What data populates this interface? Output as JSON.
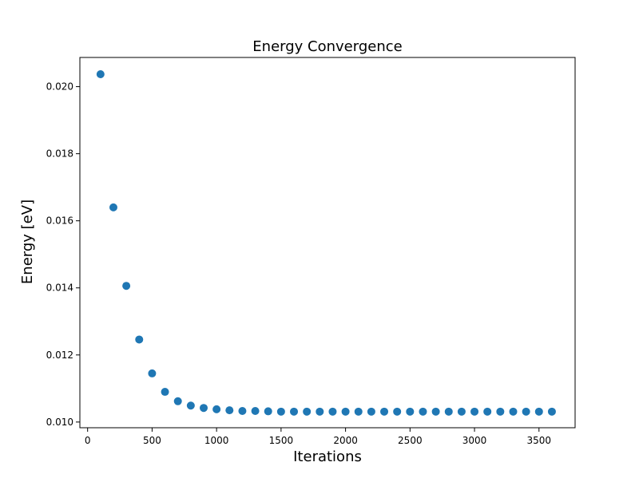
{
  "chart_data": {
    "type": "scatter",
    "title": "Energy Convergence",
    "xlabel": "Iterations",
    "ylabel": "Energy [eV]",
    "xlim": [
      -60,
      3780
    ],
    "ylim": [
      0.00983,
      0.02087
    ],
    "xticks": [
      0,
      500,
      1000,
      1500,
      2000,
      2500,
      3000,
      3500
    ],
    "xtick_labels": [
      "0",
      "500",
      "1000",
      "1500",
      "2000",
      "2500",
      "3000",
      "3500"
    ],
    "yticks": [
      0.01,
      0.012,
      0.014,
      0.016,
      0.018,
      0.02
    ],
    "ytick_labels": [
      "0.010",
      "0.012",
      "0.014",
      "0.016",
      "0.018",
      "0.020"
    ],
    "grid": false,
    "legend": false,
    "marker_color": "#1f77b4",
    "series": [
      {
        "x": [
          100,
          200,
          300,
          400,
          500,
          600,
          700,
          800,
          900,
          1000,
          1100,
          1200,
          1300,
          1400,
          1500,
          1600,
          1700,
          1800,
          1900,
          2000,
          2100,
          2200,
          2300,
          2400,
          2500,
          2600,
          2700,
          2800,
          2900,
          3000,
          3100,
          3200,
          3300,
          3400,
          3500,
          3600
        ],
        "y": [
          0.02037,
          0.0164,
          0.01406,
          0.01246,
          0.01145,
          0.0109,
          0.01062,
          0.01049,
          0.01042,
          0.01038,
          0.01035,
          0.01033,
          0.01033,
          0.01032,
          0.01031,
          0.01031,
          0.01031,
          0.01031,
          0.01031,
          0.01031,
          0.01031,
          0.01031,
          0.01031,
          0.01031,
          0.01031,
          0.01031,
          0.01031,
          0.01031,
          0.01031,
          0.01031,
          0.01031,
          0.01031,
          0.01031,
          0.01031,
          0.01031,
          0.01031
        ]
      }
    ]
  }
}
